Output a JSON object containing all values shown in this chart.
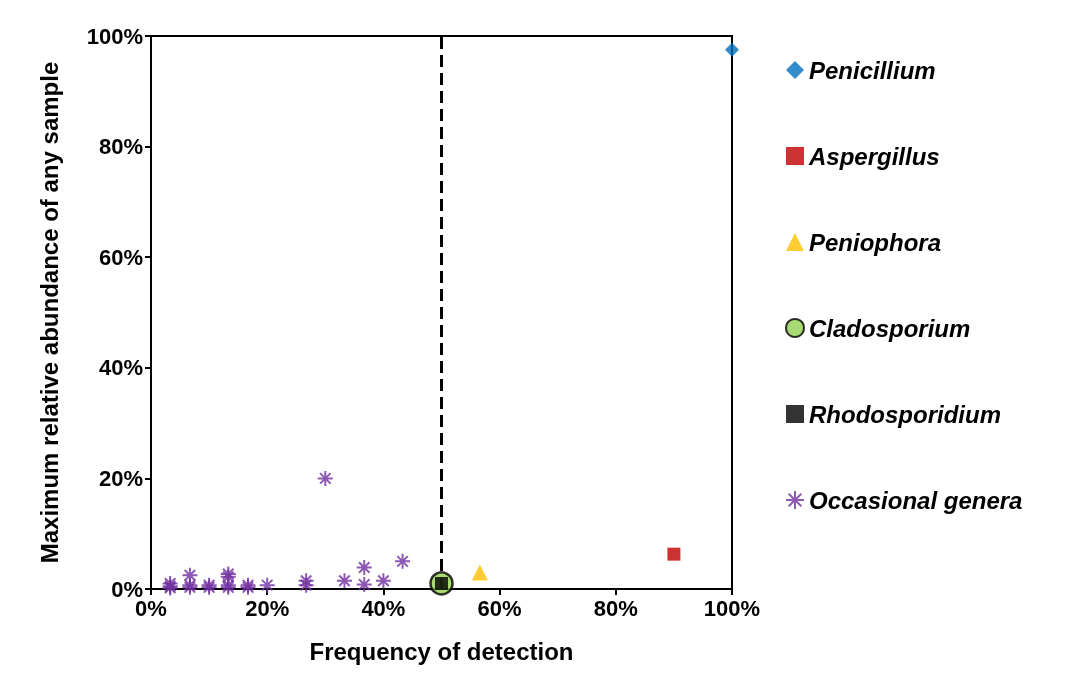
{
  "chart_data": {
    "type": "scatter",
    "xlabel": "Frequency of detection",
    "ylabel": "Maximum relative abundance of any sample",
    "xlim": [
      0,
      100
    ],
    "ylim": [
      0,
      100
    ],
    "xticks": [
      {
        "value": 0,
        "label": "0%"
      },
      {
        "value": 20,
        "label": "20%"
      },
      {
        "value": 40,
        "label": "40%"
      },
      {
        "value": 60,
        "label": "60%"
      },
      {
        "value": 80,
        "label": "80%"
      },
      {
        "value": 100,
        "label": "100%"
      }
    ],
    "yticks": [
      {
        "value": 0,
        "label": "0%"
      },
      {
        "value": 20,
        "label": "20%"
      },
      {
        "value": 40,
        "label": "40%"
      },
      {
        "value": 60,
        "label": "60%"
      },
      {
        "value": 80,
        "label": "80%"
      },
      {
        "value": 100,
        "label": "100%"
      }
    ],
    "grid": false,
    "legend": "right",
    "ref_lines": [
      {
        "axis": "x",
        "value": 50,
        "color": "#000000",
        "line_style": "dashed"
      }
    ],
    "series": [
      {
        "name": "Penicillium",
        "color": "#0070c0",
        "marker": "diamond",
        "x": [
          100
        ],
        "values": [
          97.5
        ]
      },
      {
        "name": "Aspergillus",
        "color": "#c00000",
        "marker": "square",
        "x": [
          90
        ],
        "values": [
          6.3
        ]
      },
      {
        "name": "Peniophora",
        "color": "#ffc000",
        "marker": "triangle",
        "x": [
          56.6
        ],
        "values": [
          3
        ]
      },
      {
        "name": "Cladosporium",
        "color": "#92d050",
        "marker": "circle",
        "x": [
          50
        ],
        "values": [
          1
        ]
      },
      {
        "name": "Rhodosporidium",
        "color": "#000000",
        "marker": "square",
        "x": [
          50
        ],
        "values": [
          1
        ]
      },
      {
        "name": "Occasional genera",
        "color": "#7030a0",
        "marker": "cross",
        "x": [
          3.3,
          3.3,
          3.3,
          6.7,
          6.7,
          6.7,
          10,
          10,
          13.3,
          13.3,
          13.3,
          13.3,
          16.7,
          16.7,
          20,
          26.7,
          26.7,
          30,
          33.3,
          36.7,
          36.7,
          40,
          43.3
        ],
        "values": [
          0.2,
          0.5,
          1,
          0.3,
          0.7,
          2.5,
          0.3,
          0.7,
          0.3,
          0.7,
          2.2,
          2.7,
          0.3,
          0.7,
          0.7,
          0.7,
          1.5,
          20,
          1.5,
          0.8,
          3.9,
          1.5,
          5
        ]
      }
    ]
  }
}
